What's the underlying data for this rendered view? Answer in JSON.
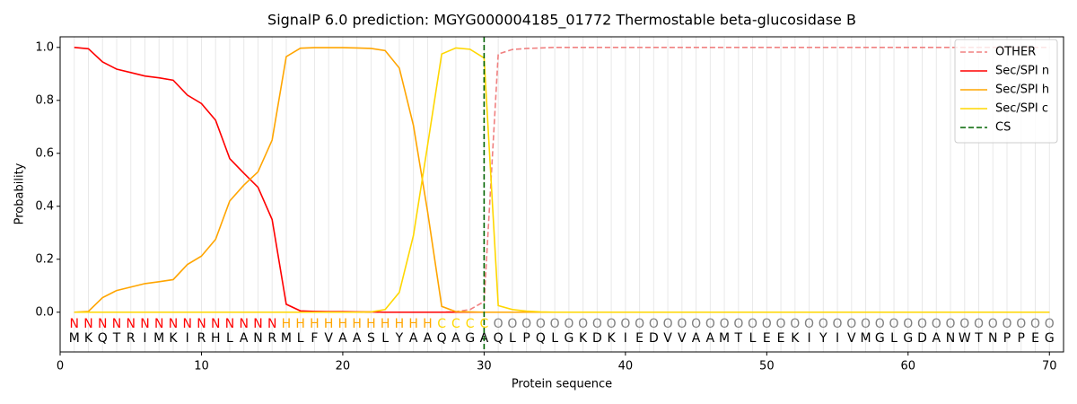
{
  "chart_data": {
    "type": "line",
    "title": "SignalP 6.0 prediction: MGYG000004185_01772 Thermostable beta-glucosidase B",
    "xlabel": "Protein sequence",
    "ylabel": "Probability",
    "x": [
      1,
      2,
      3,
      4,
      5,
      6,
      7,
      8,
      9,
      10,
      11,
      12,
      13,
      14,
      15,
      16,
      17,
      18,
      19,
      20,
      21,
      22,
      23,
      24,
      25,
      26,
      27,
      28,
      29,
      30,
      31,
      32,
      33,
      34,
      35,
      36,
      37,
      38,
      39,
      40,
      41,
      42,
      43,
      44,
      45,
      46,
      47,
      48,
      49,
      50,
      51,
      52,
      53,
      54,
      55,
      56,
      57,
      58,
      59,
      60,
      61,
      62,
      63,
      64,
      65,
      66,
      67,
      68,
      69,
      70
    ],
    "sequence": [
      "M",
      "K",
      "Q",
      "T",
      "R",
      "I",
      "M",
      "K",
      "I",
      "R",
      "H",
      "L",
      "A",
      "N",
      "R",
      "M",
      "L",
      "F",
      "V",
      "A",
      "A",
      "S",
      "L",
      "Y",
      "A",
      "A",
      "Q",
      "A",
      "G",
      "A",
      "Q",
      "L",
      "P",
      "Q",
      "L",
      "G",
      "K",
      "D",
      "K",
      "I",
      "E",
      "D",
      "V",
      "V",
      "A",
      "A",
      "M",
      "T",
      "L",
      "E",
      "E",
      "K",
      "I",
      "Y",
      "I",
      "V",
      "M",
      "G",
      "L",
      "G",
      "D",
      "A",
      "N",
      "W",
      "T",
      "N",
      "P",
      "P",
      "E",
      "G"
    ],
    "regions": [
      "N",
      "N",
      "N",
      "N",
      "N",
      "N",
      "N",
      "N",
      "N",
      "N",
      "N",
      "N",
      "N",
      "N",
      "N",
      "H",
      "H",
      "H",
      "H",
      "H",
      "H",
      "H",
      "H",
      "H",
      "H",
      "H",
      "C",
      "C",
      "C",
      "C",
      "O",
      "O",
      "O",
      "O",
      "O",
      "O",
      "O",
      "O",
      "O",
      "O",
      "O",
      "O",
      "O",
      "O",
      "O",
      "O",
      "O",
      "O",
      "O",
      "O",
      "O",
      "O",
      "O",
      "O",
      "O",
      "O",
      "O",
      "O",
      "O",
      "O",
      "O",
      "O",
      "O",
      "O",
      "O",
      "O",
      "O",
      "O",
      "O",
      "O"
    ],
    "region_colors": {
      "N": "#ff0000",
      "H": "#ffa500",
      "C": "#ffd700",
      "O": "#808080"
    },
    "series": [
      {
        "name": "OTHER",
        "color": "#f08080",
        "dash": true,
        "values": [
          0,
          0,
          0,
          0,
          0,
          0,
          0,
          0,
          0,
          0,
          0,
          0,
          0,
          0,
          0,
          0,
          0,
          0,
          0,
          0,
          0,
          0,
          0,
          0,
          0,
          0,
          0,
          0.002,
          0.01,
          0.04,
          0.975,
          0.992,
          0.996,
          0.998,
          1,
          1,
          1,
          1,
          1,
          1,
          1,
          1,
          1,
          1,
          1,
          1,
          1,
          1,
          1,
          1,
          1,
          1,
          1,
          1,
          1,
          1,
          1,
          1,
          1,
          1,
          1,
          1,
          1,
          1,
          1,
          1,
          1,
          1,
          1,
          1
        ]
      },
      {
        "name": "Sec/SPI n",
        "color": "#ff0000",
        "values": [
          1.0,
          0.995,
          0.945,
          0.918,
          0.905,
          0.892,
          0.885,
          0.876,
          0.82,
          0.788,
          0.725,
          0.58,
          0.525,
          0.472,
          0.35,
          0.03,
          0.005,
          0.003,
          0.002,
          0.002,
          0.001,
          0.001,
          0,
          0,
          0,
          0,
          0,
          0,
          0,
          0,
          0,
          0,
          0,
          0,
          0,
          0,
          0,
          0,
          0,
          0,
          0,
          0,
          0,
          0,
          0,
          0,
          0,
          0,
          0,
          0,
          0,
          0,
          0,
          0,
          0,
          0,
          0,
          0,
          0,
          0,
          0,
          0,
          0,
          0,
          0,
          0,
          0,
          0,
          0,
          0
        ]
      },
      {
        "name": "Sec/SPI h",
        "color": "#ffa500",
        "values": [
          0,
          0.003,
          0.055,
          0.082,
          0.095,
          0.108,
          0.115,
          0.123,
          0.18,
          0.212,
          0.275,
          0.42,
          0.48,
          0.53,
          0.65,
          0.965,
          0.997,
          0.999,
          0.999,
          0.999,
          0.998,
          0.996,
          0.988,
          0.922,
          0.705,
          0.38,
          0.022,
          0.002,
          0.001,
          0,
          0,
          0,
          0,
          0,
          0,
          0,
          0,
          0,
          0,
          0,
          0,
          0,
          0,
          0,
          0,
          0,
          0,
          0,
          0,
          0,
          0,
          0,
          0,
          0,
          0,
          0,
          0,
          0,
          0,
          0,
          0,
          0,
          0,
          0,
          0,
          0,
          0,
          0,
          0,
          0
        ]
      },
      {
        "name": "Sec/SPI c",
        "color": "#ffd700",
        "values": [
          0,
          0,
          0,
          0,
          0,
          0,
          0,
          0,
          0,
          0,
          0,
          0,
          0,
          0,
          0,
          0,
          0,
          0,
          0,
          0,
          0,
          0.001,
          0.01,
          0.075,
          0.29,
          0.63,
          0.975,
          0.998,
          0.993,
          0.96,
          0.025,
          0.01,
          0.004,
          0.001,
          0,
          0,
          0,
          0,
          0,
          0,
          0,
          0,
          0,
          0,
          0,
          0,
          0,
          0,
          0,
          0,
          0,
          0,
          0,
          0,
          0,
          0,
          0,
          0,
          0,
          0,
          0,
          0,
          0,
          0,
          0,
          0,
          0,
          0,
          0,
          0
        ]
      }
    ],
    "cs": {
      "name": "CS",
      "color": "#006400",
      "x": 30
    },
    "xlim": [
      0,
      71
    ],
    "xticks": [
      0,
      10,
      20,
      30,
      40,
      50,
      60,
      70
    ],
    "ylim": [
      -0.15,
      1.04
    ],
    "yticks": [
      {
        "value": 0,
        "label": "0.0"
      },
      {
        "value": 0.2,
        "label": "0.2"
      },
      {
        "value": 0.4,
        "label": "0.4"
      },
      {
        "value": 0.6,
        "label": "0.6"
      },
      {
        "value": 0.8,
        "label": "0.8"
      },
      {
        "value": 1,
        "label": "1.0"
      }
    ],
    "legend": "upper right"
  }
}
